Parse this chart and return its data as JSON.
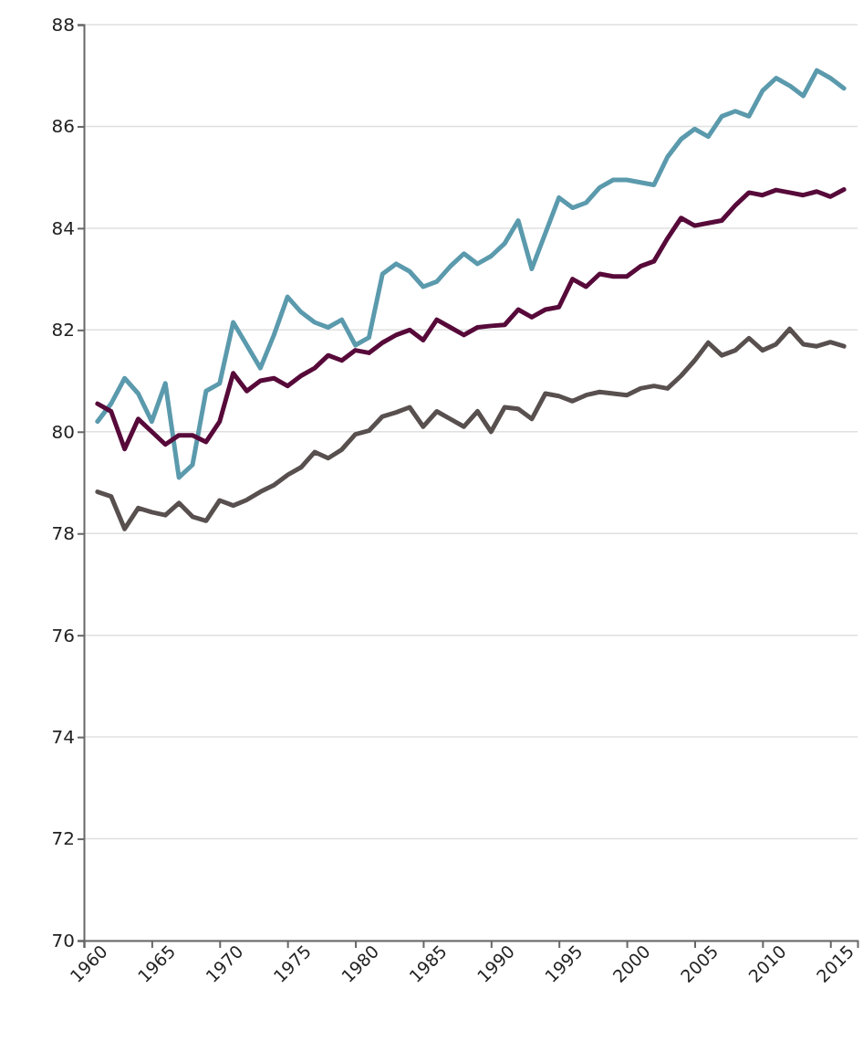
{
  "chart_data": {
    "type": "line",
    "x": [
      1961,
      1962,
      1963,
      1964,
      1965,
      1966,
      1967,
      1968,
      1969,
      1970,
      1971,
      1972,
      1973,
      1974,
      1975,
      1976,
      1977,
      1978,
      1979,
      1980,
      1981,
      1982,
      1983,
      1984,
      1985,
      1986,
      1987,
      1988,
      1989,
      1990,
      1991,
      1992,
      1993,
      1994,
      1995,
      1996,
      1997,
      1998,
      1999,
      2000,
      2001,
      2002,
      2003,
      2004,
      2005,
      2006,
      2007,
      2008,
      2009,
      2010,
      2011,
      2012,
      2013,
      2014,
      2015,
      2016
    ],
    "series": [
      {
        "color": "#5b9aad",
        "values": [
          80.2,
          80.55,
          81.05,
          80.75,
          80.2,
          80.95,
          79.1,
          79.35,
          80.8,
          80.95,
          82.15,
          81.7,
          81.25,
          81.9,
          82.65,
          82.35,
          82.15,
          82.05,
          82.2,
          81.7,
          81.85,
          83.1,
          83.3,
          83.15,
          82.85,
          82.95,
          83.25,
          83.5,
          83.3,
          83.45,
          83.7,
          84.15,
          83.2,
          83.9,
          84.6,
          84.4,
          84.5,
          84.8,
          84.95,
          84.95,
          84.9,
          84.85,
          85.4,
          85.75,
          85.95,
          85.8,
          86.2,
          86.3,
          86.2,
          86.7,
          86.95,
          86.8,
          86.6,
          87.1,
          86.95,
          86.75
        ]
      },
      {
        "color": "#570a3a",
        "values": [
          80.55,
          80.4,
          79.66,
          80.25,
          80.0,
          79.75,
          79.93,
          79.93,
          79.8,
          80.2,
          81.15,
          80.8,
          81.0,
          81.05,
          80.9,
          81.1,
          81.25,
          81.5,
          81.4,
          81.6,
          81.55,
          81.75,
          81.9,
          82.0,
          81.8,
          82.2,
          82.05,
          81.9,
          82.05,
          82.08,
          82.1,
          82.4,
          82.25,
          82.4,
          82.45,
          83.0,
          82.85,
          83.1,
          83.05,
          83.05,
          83.25,
          83.35,
          83.8,
          84.2,
          84.05,
          84.1,
          84.15,
          84.45,
          84.7,
          84.65,
          84.75,
          84.7,
          84.65,
          84.72,
          84.62,
          84.76
        ]
      },
      {
        "color": "#58504e",
        "values": [
          78.82,
          78.73,
          78.09,
          78.5,
          78.42,
          78.36,
          78.6,
          78.33,
          78.25,
          78.65,
          78.55,
          78.66,
          78.82,
          78.95,
          79.15,
          79.3,
          79.6,
          79.48,
          79.65,
          79.95,
          80.02,
          80.3,
          80.38,
          80.48,
          80.1,
          80.4,
          80.25,
          80.1,
          80.4,
          80.0,
          80.48,
          80.45,
          80.25,
          80.75,
          80.7,
          80.6,
          80.72,
          80.78,
          80.75,
          80.72,
          80.85,
          80.9,
          80.85,
          81.1,
          81.4,
          81.75,
          81.5,
          81.6,
          81.84,
          81.6,
          81.72,
          82.02,
          81.72,
          81.68,
          81.76,
          81.68
        ]
      }
    ],
    "xlim": [
      1960,
      2017
    ],
    "xticks": [
      1960,
      1965,
      1970,
      1975,
      1980,
      1985,
      1990,
      1995,
      2000,
      2005,
      2010,
      2015
    ],
    "ylim": [
      70,
      88
    ],
    "yticks": [
      70,
      72,
      74,
      76,
      78,
      80,
      82,
      84,
      86,
      88
    ],
    "grid": "y"
  }
}
